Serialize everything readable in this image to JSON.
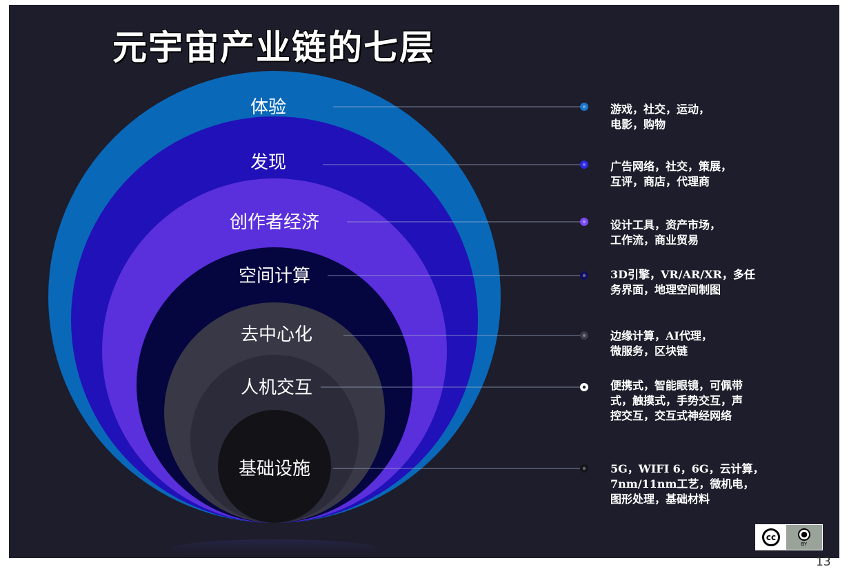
{
  "title": "元宇宙产业链的七层",
  "page_number": "13",
  "layers": [
    {
      "name": "体验",
      "description": "游戏，社交，运动，\n电影，购物",
      "color": "#0a68b8",
      "dot_color": "#1a76c8"
    },
    {
      "name": "发现",
      "description": "广告网络，社交，策展，\n互评，商店，代理商",
      "color": "#2111b8",
      "dot_color": "#2a2ae0"
    },
    {
      "name": "创作者经济",
      "description": "设计工具，资产市场，\n工作流，商业贸易",
      "color": "#5a2fdc",
      "dot_color": "#7a4af0"
    },
    {
      "name": "空间计算",
      "description": "3D引擎，VR/AR/XR，多任\n务界面，地理空间制图",
      "color": "#05053f",
      "dot_color": "#101060"
    },
    {
      "name": "去中心化",
      "description": "边缘计算，AI代理，\n微服务，区块链",
      "color": "#383847",
      "dot_color": "#3a3a48"
    },
    {
      "name": "人机交互",
      "description": "便携式，智能眼镜，可佩带\n式，触摸式，手势交互，声\n控交互，交互式神经网络",
      "color": "#2b2b3a",
      "dot_color": "#ffffff"
    },
    {
      "name": "基础设施",
      "description": "5G，WIFI 6，6G，云计算，\n7nm/11nm工艺，微机电，\n图形处理，基础材料",
      "color": "#121217",
      "dot_color": "#15151b"
    }
  ],
  "license_badge": {
    "cc_icon": "cc-icon",
    "by_icon": "by-person-icon",
    "by_label": "BY"
  }
}
